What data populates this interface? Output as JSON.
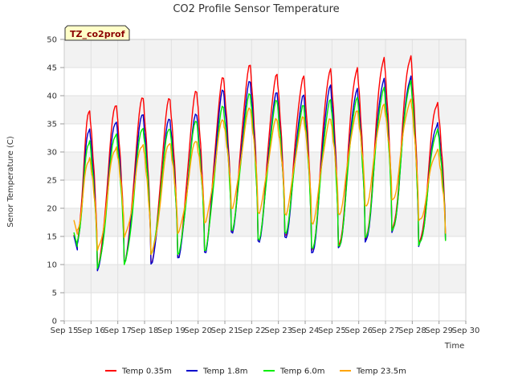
{
  "chart_data": {
    "type": "line",
    "title": "CO2 Profile Sensor Temperature",
    "xlabel": "Time",
    "ylabel": "Senor Temperature (C)",
    "badge": "TZ_co2prof",
    "x_ticks": [
      "Sep 15",
      "Sep 16",
      "Sep 17",
      "Sep 18",
      "Sep 19",
      "Sep 20",
      "Sep 21",
      "Sep 22",
      "Sep 23",
      "Sep 24",
      "Sep 25",
      "Sep 26",
      "Sep 27",
      "Sep 28",
      "Sep 29",
      "Sep 30"
    ],
    "y_ticks": [
      0,
      5,
      10,
      15,
      20,
      25,
      30,
      35,
      40,
      45,
      50
    ],
    "ylim": [
      0,
      50
    ],
    "xlim": [
      "Sep 15",
      "Sep 30"
    ],
    "grid": true,
    "legend_position": "bottom",
    "series": [
      {
        "name": "Temp 0.35m",
        "color": "#ff0000",
        "max": [
          37.3,
          38.2,
          39.5,
          39.3,
          40.6,
          43.1,
          45.4,
          43.8,
          43.5,
          44.8,
          45.0,
          46.8,
          47.1,
          38.8
        ],
        "min": [
          12.8,
          9.5,
          10.4,
          10.4,
          11.5,
          12.6,
          16.1,
          14.4,
          15.2,
          12.5,
          13.3,
          14.3,
          15.9,
          13.4,
          14.3
        ]
      },
      {
        "name": "Temp 1.8m",
        "color": "#0000cc",
        "max": [
          34.1,
          35.3,
          36.6,
          35.7,
          36.5,
          40.8,
          42.4,
          40.5,
          40.1,
          41.9,
          41.3,
          43.1,
          43.5,
          35.2
        ],
        "min": [
          12.6,
          8.9,
          10.2,
          10.1,
          11.2,
          12.2,
          15.8,
          14.2,
          14.9,
          12.1,
          13.0,
          14.0,
          15.7,
          13.2,
          14.4
        ]
      },
      {
        "name": "Temp 6.0m",
        "color": "#00ee00",
        "max": [
          32.0,
          33.2,
          34.2,
          34.0,
          35.3,
          37.9,
          40.1,
          39.0,
          38.2,
          39.3,
          39.7,
          41.5,
          42.7,
          34.1
        ],
        "min": [
          13.2,
          9.3,
          10.0,
          11.8,
          11.8,
          12.5,
          16.2,
          14.6,
          15.8,
          13.0,
          13.3,
          14.8,
          16.0,
          13.4,
          14.2
        ]
      },
      {
        "name": "Temp 23.5m",
        "color": "#ffa500",
        "max": [
          29.0,
          30.9,
          31.3,
          31.5,
          31.8,
          35.5,
          37.5,
          35.6,
          36.0,
          35.8,
          37.3,
          38.5,
          39.4,
          30.5
        ],
        "min": [
          15.4,
          12.5,
          14.8,
          11.8,
          15.5,
          17.4,
          20.0,
          19.3,
          19.1,
          17.5,
          19.1,
          20.5,
          21.5,
          17.8,
          15.5
        ]
      }
    ]
  }
}
